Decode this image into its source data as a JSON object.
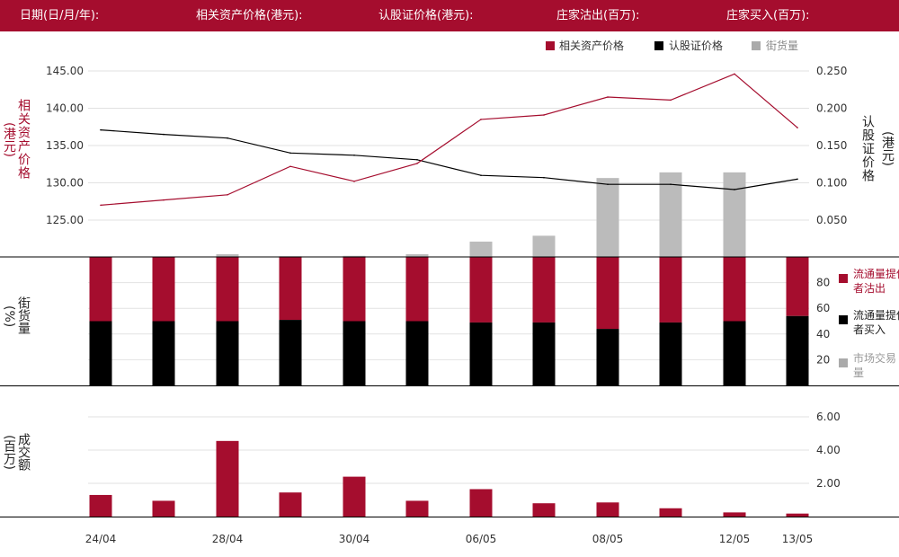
{
  "header": {
    "date_label": "日期(日/月/年):",
    "underlying_label": "相关资产价格(港元):",
    "warrant_label": "认股证价格(港元):",
    "mm_out_label": "庄家沽出(百万):",
    "mm_in_label": "庄家买入(百万):"
  },
  "legend_top": {
    "underlying": "相关资产价格",
    "warrant": "认股证价格",
    "outstanding": "街货量"
  },
  "axis_titles": {
    "left_price": "相关资产价格",
    "left_price_unit": "(港元)",
    "right_price": "认股证价格",
    "right_price_unit": "(港元)",
    "mid_left": "街货量",
    "mid_left_unit": "(%)",
    "bottom_left": "成交额",
    "bottom_left_unit": "(百万)"
  },
  "legend_mid": {
    "mm_out": "流通量提供者沽出",
    "mm_in": "流通量提供者买入",
    "market": "市场交易量"
  },
  "colors": {
    "brand": "#a50d2e",
    "underlying_line": "#a50d2e",
    "warrant_line": "#000000",
    "outstanding_bar": "#bbbbbb",
    "mm_out": "#a50d2e",
    "mm_in": "#000000",
    "market": "#aaaaaa",
    "turnover": "#a50d2e"
  },
  "chart_data": {
    "type": "combo",
    "x_labels": [
      "24/04",
      "",
      "28/04",
      "",
      "30/04",
      "",
      "06/05",
      "",
      "08/05",
      "",
      "12/05",
      "13/05"
    ],
    "underlying_price": {
      "name": "相关资产价格",
      "values": [
        127.0,
        127.7,
        128.4,
        132.2,
        130.2,
        132.6,
        138.5,
        139.1,
        141.5,
        141.1,
        144.6,
        137.4
      ],
      "ticks": [
        125.0,
        130.0,
        135.0,
        140.0,
        145.0
      ],
      "tick_labels": [
        "125.00",
        "130.00",
        "135.00",
        "140.00",
        "145.00"
      ]
    },
    "warrant_price": {
      "name": "认股证价格",
      "values": [
        0.171,
        0.165,
        0.16,
        0.14,
        0.137,
        0.131,
        0.11,
        0.107,
        0.098,
        0.098,
        0.091,
        0.105
      ],
      "ticks": [
        0.05,
        0.1,
        0.15,
        0.2,
        0.25
      ],
      "tick_labels": [
        "0.050",
        "0.100",
        "0.150",
        "0.200",
        "0.250"
      ]
    },
    "outstanding": {
      "name": "街货量",
      "values": [
        0,
        0,
        1.2,
        0.3,
        0.5,
        1.2,
        6.8,
        9.4,
        35,
        37.5,
        37.5,
        0
      ],
      "ymax": 100
    },
    "mm_share": {
      "ticks": [
        20,
        40,
        60,
        80
      ],
      "tick_labels": [
        "20",
        "40",
        "60",
        "80"
      ],
      "ymax": 100,
      "mm_out": [
        50,
        50,
        50,
        49,
        50,
        50,
        51,
        51,
        56,
        51,
        50,
        46
      ],
      "mm_in": [
        50,
        50,
        50,
        51,
        50,
        50,
        49,
        49,
        44,
        49,
        50,
        54
      ]
    },
    "turnover": {
      "name": "成交额",
      "values": [
        1.3,
        0.95,
        4.55,
        1.45,
        2.4,
        0.95,
        1.65,
        0.8,
        0.85,
        0.5,
        0.25,
        0.18
      ],
      "ticks": [
        2.0,
        4.0,
        6.0
      ],
      "tick_labels": [
        "2.00",
        "4.00",
        "6.00"
      ],
      "ymax": 6
    }
  }
}
